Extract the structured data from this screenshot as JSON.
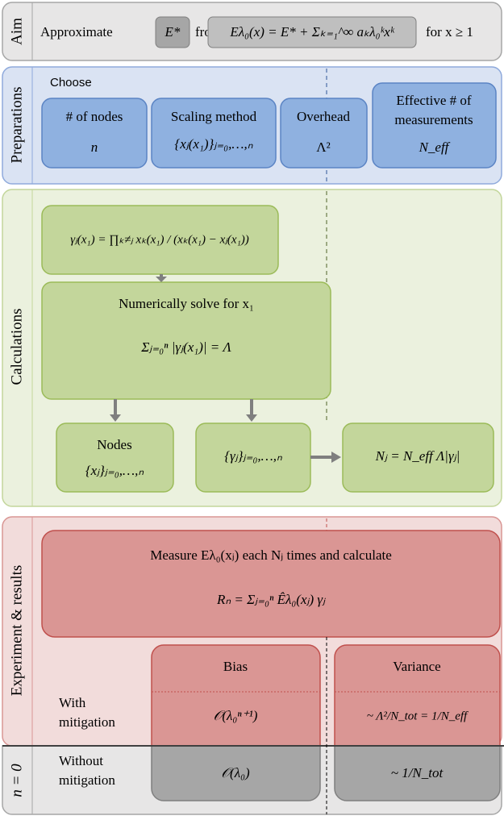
{
  "aim": {
    "label": "Aim",
    "approximate": "Approximate",
    "target": "E*",
    "from": "from",
    "expansion": "Eλ₀(x) = E* + Σₖ₌₁^∞ aₖλ₀ᵏxᵏ",
    "condition": "for x ≥ 1"
  },
  "preparations": {
    "label": "Preparations",
    "choose": "Choose",
    "items": [
      {
        "title_lines": [
          "# of nodes"
        ],
        "symbol": "n"
      },
      {
        "title_lines": [
          "Scaling method"
        ],
        "symbol": "{xⱼ(x₁)}ⱼ₌₀,…,ₙ"
      },
      {
        "title_lines": [
          "Overhead"
        ],
        "symbol": "Λ²"
      },
      {
        "title_lines": [
          "Effective # of",
          "measurements"
        ],
        "symbol": "N_eff"
      }
    ]
  },
  "calculations": {
    "label": "Calculations",
    "weights": "γⱼ(x₁) = ∏ₖ≠ⱼ xₖ(x₁) / (xₖ(x₁) − xⱼ(x₁))",
    "solve_title": "Numerically solve for x₁",
    "solve_equation": "Σⱼ₌₀ⁿ |γⱼ(x₁)| = Λ",
    "nodes_title": "Nodes",
    "nodes_symbol": "{xⱼ}ⱼ₌₀,…,ₙ",
    "coefficients": "{γⱼ}ⱼ₌₀,…,ₙ",
    "shots": "Nⱼ = N_eff Λ|γⱼ|"
  },
  "experiment": {
    "label": "Experiment & results",
    "measure": "Measure Eλ₀(xⱼ) each Nⱼ times and calculate",
    "estimator": "Rₙ = Σⱼ₌₀ⁿ Êλ₀(xⱼ) γⱼ",
    "columns": [
      "Bias",
      "Variance"
    ],
    "rows": [
      {
        "label_lines": [
          "With",
          "mitigation"
        ],
        "bias": "𝒪(λ₀ⁿ⁺¹)",
        "variance": "~ Λ²/N_tot = 1/N_eff"
      },
      {
        "section": "n = 0",
        "label_lines": [
          "Without",
          "mitigation"
        ],
        "bias": "𝒪(λ₀)",
        "variance": "~ 1/N_tot"
      }
    ]
  }
}
